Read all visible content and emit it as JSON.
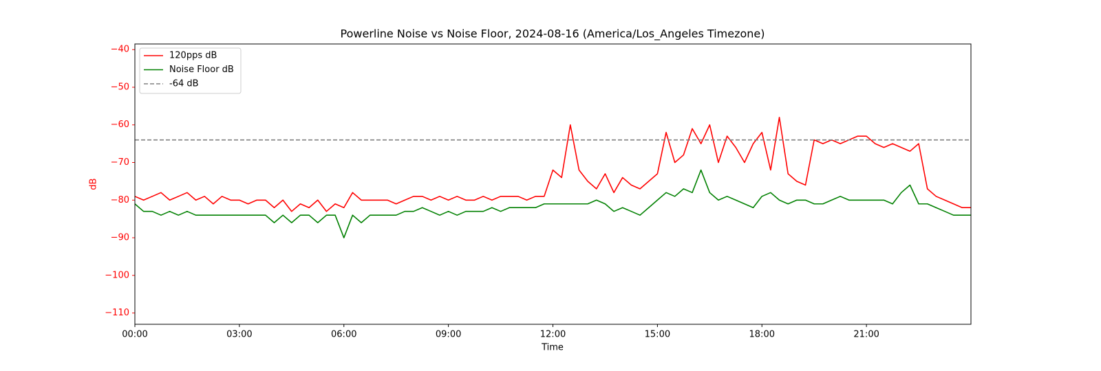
{
  "chart_data": {
    "type": "line",
    "title": "Powerline Noise vs Noise Floor, 2024-08-16 (America/Los_Angeles Timezone)",
    "x_label": "Time",
    "y_label": "dB",
    "x": [
      0,
      0.25,
      0.5,
      0.75,
      1,
      1.25,
      1.5,
      1.75,
      2,
      2.25,
      2.5,
      2.75,
      3,
      3.25,
      3.5,
      3.75,
      4,
      4.25,
      4.5,
      4.75,
      5,
      5.25,
      5.5,
      5.75,
      6,
      6.25,
      6.5,
      6.75,
      7,
      7.25,
      7.5,
      7.75,
      8,
      8.25,
      8.5,
      8.75,
      9,
      9.25,
      9.5,
      9.75,
      10,
      10.25,
      10.5,
      10.75,
      11,
      11.25,
      11.5,
      11.75,
      12,
      12.25,
      12.5,
      12.75,
      13,
      13.25,
      13.5,
      13.75,
      14,
      14.25,
      14.5,
      14.75,
      15,
      15.25,
      15.5,
      15.75,
      16,
      16.25,
      16.5,
      16.75,
      17,
      17.25,
      17.5,
      17.75,
      18,
      18.25,
      18.5,
      18.75,
      19,
      19.25,
      19.5,
      19.75,
      20,
      20.25,
      20.5,
      20.75,
      21,
      21.25,
      21.5,
      21.75,
      22,
      22.25,
      22.5,
      22.75,
      23,
      23.25,
      23.5,
      23.75,
      24
    ],
    "series": [
      {
        "name": "120pps dB",
        "color": "#ff0000",
        "values": [
          -79,
          -80,
          -79,
          -78,
          -80,
          -79,
          -78,
          -80,
          -79,
          -81,
          -79,
          -80,
          -80,
          -81,
          -80,
          -80,
          -82,
          -80,
          -83,
          -81,
          -82,
          -80,
          -83,
          -81,
          -82,
          -78,
          -80,
          -80,
          -80,
          -80,
          -81,
          -80,
          -79,
          -79,
          -80,
          -79,
          -80,
          -79,
          -80,
          -80,
          -79,
          -80,
          -79,
          -79,
          -79,
          -80,
          -79,
          -79,
          -72,
          -74,
          -60,
          -72,
          -75,
          -77,
          -73,
          -78,
          -74,
          -76,
          -77,
          -75,
          -73,
          -62,
          -70,
          -68,
          -61,
          -65,
          -60,
          -70,
          -63,
          -66,
          -70,
          -65,
          -62,
          -72,
          -58,
          -73,
          -75,
          -76,
          -64,
          -65,
          -64,
          -65,
          -64,
          -63,
          -63,
          -65,
          -66,
          -65,
          -66,
          -67,
          -65,
          -77,
          -79,
          -80,
          -81,
          -82,
          -82
        ]
      },
      {
        "name": "Noise Floor dB",
        "color": "#008000",
        "values": [
          -81,
          -83,
          -83,
          -84,
          -83,
          -84,
          -83,
          -84,
          -84,
          -84,
          -84,
          -84,
          -84,
          -84,
          -84,
          -84,
          -86,
          -84,
          -86,
          -84,
          -84,
          -86,
          -84,
          -84,
          -90,
          -84,
          -86,
          -84,
          -84,
          -84,
          -84,
          -83,
          -83,
          -82,
          -83,
          -84,
          -83,
          -84,
          -83,
          -83,
          -83,
          -82,
          -83,
          -82,
          -82,
          -82,
          -82,
          -81,
          -81,
          -81,
          -81,
          -81,
          -81,
          -80,
          -81,
          -83,
          -82,
          -83,
          -84,
          -82,
          -80,
          -78,
          -79,
          -77,
          -78,
          -72,
          -78,
          -80,
          -79,
          -80,
          -81,
          -82,
          -79,
          -78,
          -80,
          -81,
          -80,
          -80,
          -81,
          -81,
          -80,
          -79,
          -80,
          -80,
          -80,
          -80,
          -80,
          -81,
          -78,
          -76,
          -81,
          -81,
          -82,
          -83,
          -84,
          -84,
          -84
        ]
      }
    ],
    "reference_line": {
      "name": "-64 dB",
      "value": -64,
      "color": "#808080"
    },
    "xlim": [
      0,
      24
    ],
    "xticks": [
      {
        "value": 0,
        "label": "00:00"
      },
      {
        "value": 3,
        "label": "03:00"
      },
      {
        "value": 6,
        "label": "06:00"
      },
      {
        "value": 9,
        "label": "09:00"
      },
      {
        "value": 12,
        "label": "12:00"
      },
      {
        "value": 15,
        "label": "15:00"
      },
      {
        "value": 18,
        "label": "18:00"
      },
      {
        "value": 21,
        "label": "21:00"
      }
    ],
    "ylim": [
      -113,
      -38.5
    ],
    "yticks": [
      {
        "value": -110,
        "label": "−110"
      },
      {
        "value": -100,
        "label": "−100"
      },
      {
        "value": -90,
        "label": "−90"
      },
      {
        "value": -80,
        "label": "−80"
      },
      {
        "value": -70,
        "label": "−70"
      },
      {
        "value": -60,
        "label": "−60"
      },
      {
        "value": -50,
        "label": "−50"
      },
      {
        "value": -40,
        "label": "−40"
      }
    ],
    "y_axis_color": "#ff0000",
    "legend": "upper left"
  }
}
